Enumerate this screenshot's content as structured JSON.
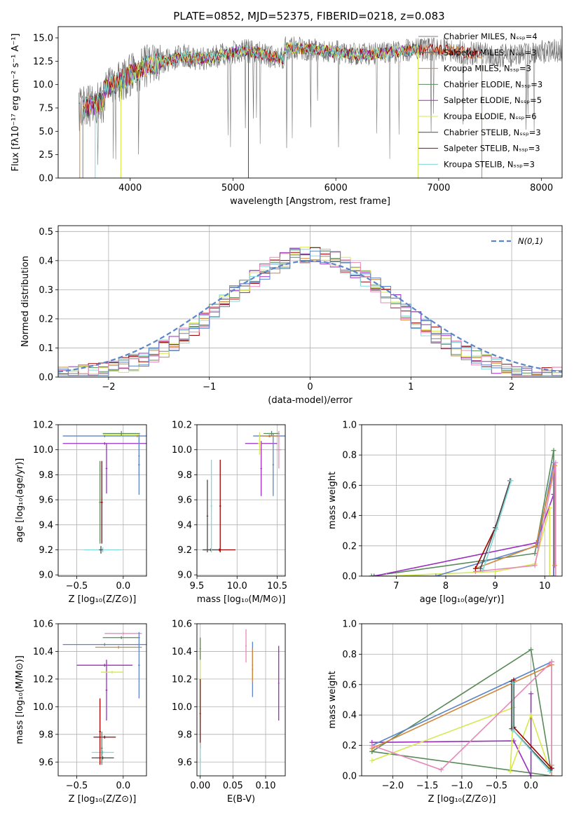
{
  "chart_data": [
    {
      "type": "line",
      "id": "spectrum",
      "title": "PLATE=0852, MJD=52375, FIBERID=0218, z=0.083",
      "xlabel": "wavelength [Angstrom, rest frame]",
      "ylabel": "Flux [fλ10⁻¹⁷ erg cm⁻² s⁻¹ A⁻¹]",
      "xlim": [
        3300,
        8200
      ],
      "ylim": [
        0,
        16.2
      ],
      "xticks": [
        4000,
        5000,
        6000,
        7000,
        8000
      ],
      "yticks": [
        0.0,
        2.5,
        5.0,
        7.5,
        10.0,
        12.5,
        15.0
      ],
      "legend_position": "top-right",
      "series": [
        {
          "name": "Chabrier MILES, N_SSP=4",
          "color": "#808080"
        },
        {
          "name": "Salpeter MILES, N_SSP=3",
          "color": "#666666"
        },
        {
          "name": "Kroupa MILES, N_SSP=3",
          "color": "#d0873a"
        },
        {
          "name": "Chabrier ELODIE, N_SSP=3",
          "color": "#5a8a5a"
        },
        {
          "name": "Salpeter ELODIE, N_SSP=5",
          "color": "#9a2fbf"
        },
        {
          "name": "Kroupa ELODIE, N_SSP=6",
          "color": "#d6e84e"
        },
        {
          "name": "Chabrier STELIB, N_SSP=3",
          "color": "#4a4a4a"
        },
        {
          "name": "Salpeter STELIB, N_SSP=3",
          "color": "#a00000"
        },
        {
          "name": "Kroupa STELIB, N_SSP=3",
          "color": "#7fd9d9"
        }
      ]
    },
    {
      "type": "bar",
      "id": "residuals",
      "xlabel": "(data-model)/error",
      "ylabel": "Normed distribution",
      "xlim": [
        -2.5,
        2.5
      ],
      "ylim": [
        0,
        0.52
      ],
      "xticks": [
        -2,
        -1,
        0,
        1,
        2
      ],
      "yticks": [
        0.0,
        0.1,
        0.2,
        0.3,
        0.4,
        0.5
      ],
      "grid": true,
      "legend_position": "top-right",
      "reference": {
        "name": "N(0,1)",
        "mean": 0,
        "sigma": 1,
        "color": "#5b84c9"
      }
    },
    {
      "type": "scatter",
      "id": "age-vs-Z",
      "xlabel": "Z [log₁₀(Z/Z⊙)]",
      "ylabel": "age  [log₁₀(age/yr)]",
      "xlim": [
        -0.7,
        0.25
      ],
      "ylim": [
        8.99,
        10.2
      ],
      "xticks": [
        -0.5,
        0.0
      ],
      "yticks": [
        9.0,
        9.2,
        9.4,
        9.6,
        9.8,
        10.0,
        10.2
      ],
      "grid": true,
      "points": [
        {
          "x": -0.22,
          "y": 9.2,
          "xerr": 0.2,
          "yerr": 0.02,
          "color": "#7fd9d9"
        },
        {
          "x": -0.24,
          "y": 9.2,
          "xerr": 0.02,
          "yerr": 0.03,
          "color": "#4a4a4a"
        },
        {
          "x": -0.23,
          "y": 9.58,
          "xerr": 0.01,
          "yerr": 0.33,
          "color": "#a00000"
        },
        {
          "x": -0.25,
          "y": 9.58,
          "xerr": 0.01,
          "yerr": 0.33,
          "color": "#5a8a5a"
        },
        {
          "x": -0.18,
          "y": 9.85,
          "xerr": 0.01,
          "yerr": 0.2,
          "color": "#9a2fbf"
        },
        {
          "x": -0.2,
          "y": 10.05,
          "xerr": 0.45,
          "yerr": 0.01,
          "color": "#9a2fbf"
        },
        {
          "x": -0.2,
          "y": 10.11,
          "xerr": 0.45,
          "yerr": 0.01,
          "color": "#5b84c9"
        },
        {
          "x": 0.15,
          "y": 10.11,
          "xerr": 0.01,
          "yerr": 0.01,
          "color": "#d0873a"
        },
        {
          "x": -0.02,
          "y": 10.12,
          "xerr": 0.2,
          "yerr": 0.02,
          "color": "#d6e84e"
        },
        {
          "x": -0.02,
          "y": 10.13,
          "xerr": 0.2,
          "yerr": 0.02,
          "color": "#5a8a5a"
        },
        {
          "x": 0.17,
          "y": 9.95,
          "xerr": 0.01,
          "yerr": 0.16,
          "color": "#e888b8"
        },
        {
          "x": 0.17,
          "y": 9.88,
          "xerr": 0.01,
          "yerr": 0.24,
          "color": "#5b84c9"
        }
      ]
    },
    {
      "type": "scatter",
      "id": "age-vs-mass",
      "xlabel": "mass [log₁₀(M/M⊙)]",
      "ylabel": "",
      "xlim": [
        9.5,
        10.6
      ],
      "ylim": [
        8.99,
        10.2
      ],
      "xticks": [
        9.5,
        10.0,
        10.5
      ],
      "yticks": [
        9.0,
        9.2,
        9.4,
        9.6,
        9.8,
        10.0,
        10.2
      ],
      "grid": true,
      "points": [
        {
          "x": 9.78,
          "y": 9.2,
          "xerr": 0.2,
          "yerr": 0.01,
          "color": "#a00000"
        },
        {
          "x": 9.67,
          "y": 9.2,
          "xerr": 0.1,
          "yerr": 0.01,
          "color": "#4a4a4a"
        },
        {
          "x": 9.63,
          "y": 9.47,
          "xerr": 0.01,
          "yerr": 0.29,
          "color": "#4a4a4a"
        },
        {
          "x": 9.68,
          "y": 9.55,
          "xerr": 0.01,
          "yerr": 0.37,
          "color": "#7fd9d9"
        },
        {
          "x": 9.79,
          "y": 9.55,
          "xerr": 0.01,
          "yerr": 0.37,
          "color": "#a00000"
        },
        {
          "x": 10.3,
          "y": 9.85,
          "xerr": 0.01,
          "yerr": 0.22,
          "color": "#9a2fbf"
        },
        {
          "x": 10.3,
          "y": 10.05,
          "xerr": 0.2,
          "yerr": 0.01,
          "color": "#9a2fbf"
        },
        {
          "x": 10.4,
          "y": 10.11,
          "xerr": 0.2,
          "yerr": 0.01,
          "color": "#5b84c9"
        },
        {
          "x": 10.45,
          "y": 9.88,
          "xerr": 0.01,
          "yerr": 0.25,
          "color": "#5b84c9"
        },
        {
          "x": 10.41,
          "y": 10.11,
          "xerr": 0.1,
          "yerr": 0.01,
          "color": "#d0873a"
        },
        {
          "x": 10.43,
          "y": 10.13,
          "xerr": 0.1,
          "yerr": 0.02,
          "color": "#5a8a5a"
        },
        {
          "x": 10.28,
          "y": 10.05,
          "xerr": 0.02,
          "yerr": 0.09,
          "color": "#d6e84e"
        },
        {
          "x": 10.52,
          "y": 10.0,
          "xerr": 0.03,
          "yerr": 0.15,
          "color": "#e888b8"
        }
      ]
    },
    {
      "type": "line",
      "id": "weight-vs-age",
      "xlabel": "age  [log₁₀(age/yr)]",
      "ylabel": "mass weight",
      "xlim": [
        6.3,
        10.35
      ],
      "ylim": [
        0,
        1.0
      ],
      "xticks": [
        7,
        8,
        9,
        10
      ],
      "yticks": [
        0.0,
        0.2,
        0.4,
        0.6,
        0.8,
        1.0
      ],
      "grid": true,
      "series": [
        {
          "color": "#5a8a5a",
          "x": [
            6.5,
            9.8,
            10.18,
            10.18,
            6.5
          ],
          "y": [
            0.0,
            0.15,
            0.83,
            0.0,
            0.0
          ]
        },
        {
          "color": "#9a2fbf",
          "x": [
            6.55,
            9.83,
            10.18,
            10.18
          ],
          "y": [
            0.0,
            0.22,
            0.54,
            0.0
          ]
        },
        {
          "color": "#d6e84e",
          "x": [
            6.8,
            9.0,
            9.8,
            10.1,
            10.1
          ],
          "y": [
            0.0,
            0.03,
            0.08,
            0.45,
            0.0
          ]
        },
        {
          "color": "#5b84c9",
          "x": [
            7.8,
            9.85,
            10.18,
            10.18
          ],
          "y": [
            0.0,
            0.2,
            0.75,
            0.0
          ]
        },
        {
          "color": "#d0873a",
          "x": [
            8.6,
            9.82,
            10.2,
            10.2
          ],
          "y": [
            0.05,
            0.2,
            0.73,
            0.07
          ]
        },
        {
          "color": "#e888b8",
          "x": [
            8.6,
            9.8,
            10.22,
            10.22
          ],
          "y": [
            0.03,
            0.07,
            0.75,
            0.0
          ]
        },
        {
          "color": "#a00000",
          "x": [
            8.6,
            9.0,
            9.3
          ],
          "y": [
            0.05,
            0.32,
            0.63
          ]
        },
        {
          "color": "#4a4a4a",
          "x": [
            8.7,
            9.0,
            9.3
          ],
          "y": [
            0.05,
            0.32,
            0.63
          ]
        },
        {
          "color": "#7fd9d9",
          "x": [
            8.75,
            9.02,
            9.32
          ],
          "y": [
            0.04,
            0.31,
            0.63
          ]
        }
      ]
    },
    {
      "type": "scatter",
      "id": "mass-vs-Z",
      "xlabel": "Z [log₁₀(Z/Z⊙)]",
      "ylabel": "mass [log₁₀(M/M⊙)]",
      "xlim": [
        -0.7,
        0.25
      ],
      "ylim": [
        9.5,
        10.6
      ],
      "xticks": [
        -0.5,
        0.0
      ],
      "yticks": [
        9.6,
        9.8,
        10.0,
        10.2,
        10.4,
        10.6
      ],
      "grid": true,
      "points": [
        {
          "x": -0.22,
          "y": 9.63,
          "xerr": 0.12,
          "yerr": 0.01,
          "color": "#4a4a4a"
        },
        {
          "x": -0.22,
          "y": 9.67,
          "xerr": 0.12,
          "yerr": 0.01,
          "color": "#7fd9d9"
        },
        {
          "x": -0.2,
          "y": 9.78,
          "xerr": 0.12,
          "yerr": 0.01,
          "color": "#a00000"
        },
        {
          "x": -0.25,
          "y": 9.82,
          "xerr": 0.01,
          "yerr": 0.24,
          "color": "#a00000"
        },
        {
          "x": -0.23,
          "y": 9.7,
          "xerr": 0.01,
          "yerr": 0.12,
          "color": "#5a8a5a"
        },
        {
          "x": -0.18,
          "y": 10.12,
          "xerr": 0.01,
          "yerr": 0.22,
          "color": "#9a2fbf"
        },
        {
          "x": -0.2,
          "y": 10.3,
          "xerr": 0.3,
          "yerr": 0.01,
          "color": "#9a2fbf"
        },
        {
          "x": -0.12,
          "y": 10.25,
          "xerr": 0.12,
          "yerr": 0.01,
          "color": "#d6e84e"
        },
        {
          "x": -0.2,
          "y": 10.45,
          "xerr": 0.45,
          "yerr": 0.01,
          "color": "#5b84c9"
        },
        {
          "x": -0.05,
          "y": 10.43,
          "xerr": 0.25,
          "yerr": 0.01,
          "color": "#d0873a"
        },
        {
          "x": -0.02,
          "y": 10.5,
          "xerr": 0.2,
          "yerr": 0.01,
          "color": "#5a8a5a"
        },
        {
          "x": 0.0,
          "y": 10.53,
          "xerr": 0.2,
          "yerr": 0.01,
          "color": "#e888b8"
        },
        {
          "x": 0.17,
          "y": 10.3,
          "xerr": 0.01,
          "yerr": 0.24,
          "color": "#5b84c9"
        }
      ]
    },
    {
      "type": "scatter",
      "id": "mass-vs-ebv",
      "xlabel": "E(B-V)",
      "ylabel": "",
      "xlim": [
        -0.005,
        0.13
      ],
      "ylim": [
        9.5,
        10.6
      ],
      "xticks": [
        0.0,
        0.05,
        0.1
      ],
      "yticks": [
        9.6,
        9.8,
        10.0,
        10.2,
        10.4,
        10.6
      ],
      "grid": true,
      "points": [
        {
          "x": 0.0,
          "y": 10.2,
          "xerr": 0.001,
          "yerr": 0.3,
          "color": "#d6e84e"
        },
        {
          "x": 0.0,
          "y": 9.95,
          "xerr": 0.001,
          "yerr": 0.25,
          "color": "#a00000"
        },
        {
          "x": 0.0,
          "y": 9.62,
          "xerr": 0.001,
          "yerr": 0.12,
          "color": "#7fd9d9"
        },
        {
          "x": 0.0,
          "y": 10.42,
          "xerr": 0.001,
          "yerr": 0.08,
          "color": "#5a8a5a"
        },
        {
          "x": 0.07,
          "y": 10.44,
          "xerr": 0.001,
          "yerr": 0.12,
          "color": "#e888b8"
        },
        {
          "x": 0.08,
          "y": 10.27,
          "xerr": 0.001,
          "yerr": 0.2,
          "color": "#5b84c9"
        },
        {
          "x": 0.08,
          "y": 10.3,
          "xerr": 0.001,
          "yerr": 0.12,
          "color": "#d0873a"
        },
        {
          "x": 0.12,
          "y": 10.17,
          "xerr": 0.001,
          "yerr": 0.27,
          "color": "#9a2fbf"
        }
      ]
    },
    {
      "type": "line",
      "id": "weight-vs-Z",
      "xlabel": "Z [log₁₀(Z/Z⊙)]",
      "ylabel": "mass weight",
      "xlim": [
        -2.45,
        0.45
      ],
      "ylim": [
        0,
        1.0
      ],
      "xticks": [
        -2.0,
        -1.5,
        -1.0,
        -0.5,
        0.0
      ],
      "yticks": [
        0.0,
        0.2,
        0.4,
        0.6,
        0.8,
        1.0
      ],
      "grid": true,
      "series": [
        {
          "color": "#5a8a5a",
          "x": [
            -2.3,
            0.0,
            0.3,
            -2.3
          ],
          "y": [
            0.16,
            0.83,
            0.0,
            0.16
          ]
        },
        {
          "color": "#9a2fbf",
          "x": [
            -2.3,
            -0.25,
            0.0,
            0.0
          ],
          "y": [
            0.22,
            0.23,
            0.0,
            0.54
          ]
        },
        {
          "color": "#d6e84e",
          "x": [
            -2.3,
            -0.25,
            -0.3,
            0.0,
            0.3
          ],
          "y": [
            0.1,
            0.45,
            0.03,
            0.4,
            0.0
          ]
        },
        {
          "color": "#5b84c9",
          "x": [
            -2.3,
            0.3,
            0.3
          ],
          "y": [
            0.2,
            0.75,
            0.05
          ]
        },
        {
          "color": "#d0873a",
          "x": [
            -2.3,
            0.3,
            0.3
          ],
          "y": [
            0.18,
            0.73,
            0.07
          ]
        },
        {
          "color": "#e888b8",
          "x": [
            -2.3,
            -1.3,
            0.3,
            0.3
          ],
          "y": [
            0.2,
            0.04,
            0.75,
            0.0
          ]
        },
        {
          "color": "#a00000",
          "x": [
            -0.25,
            -0.25,
            0.3
          ],
          "y": [
            0.63,
            0.32,
            0.05
          ]
        },
        {
          "color": "#4a4a4a",
          "x": [
            -0.28,
            -0.28,
            0.28
          ],
          "y": [
            0.62,
            0.31,
            0.04
          ]
        },
        {
          "color": "#7fd9d9",
          "x": [
            -0.26,
            -0.26,
            0.27
          ],
          "y": [
            0.61,
            0.3,
            0.03
          ]
        }
      ]
    }
  ]
}
